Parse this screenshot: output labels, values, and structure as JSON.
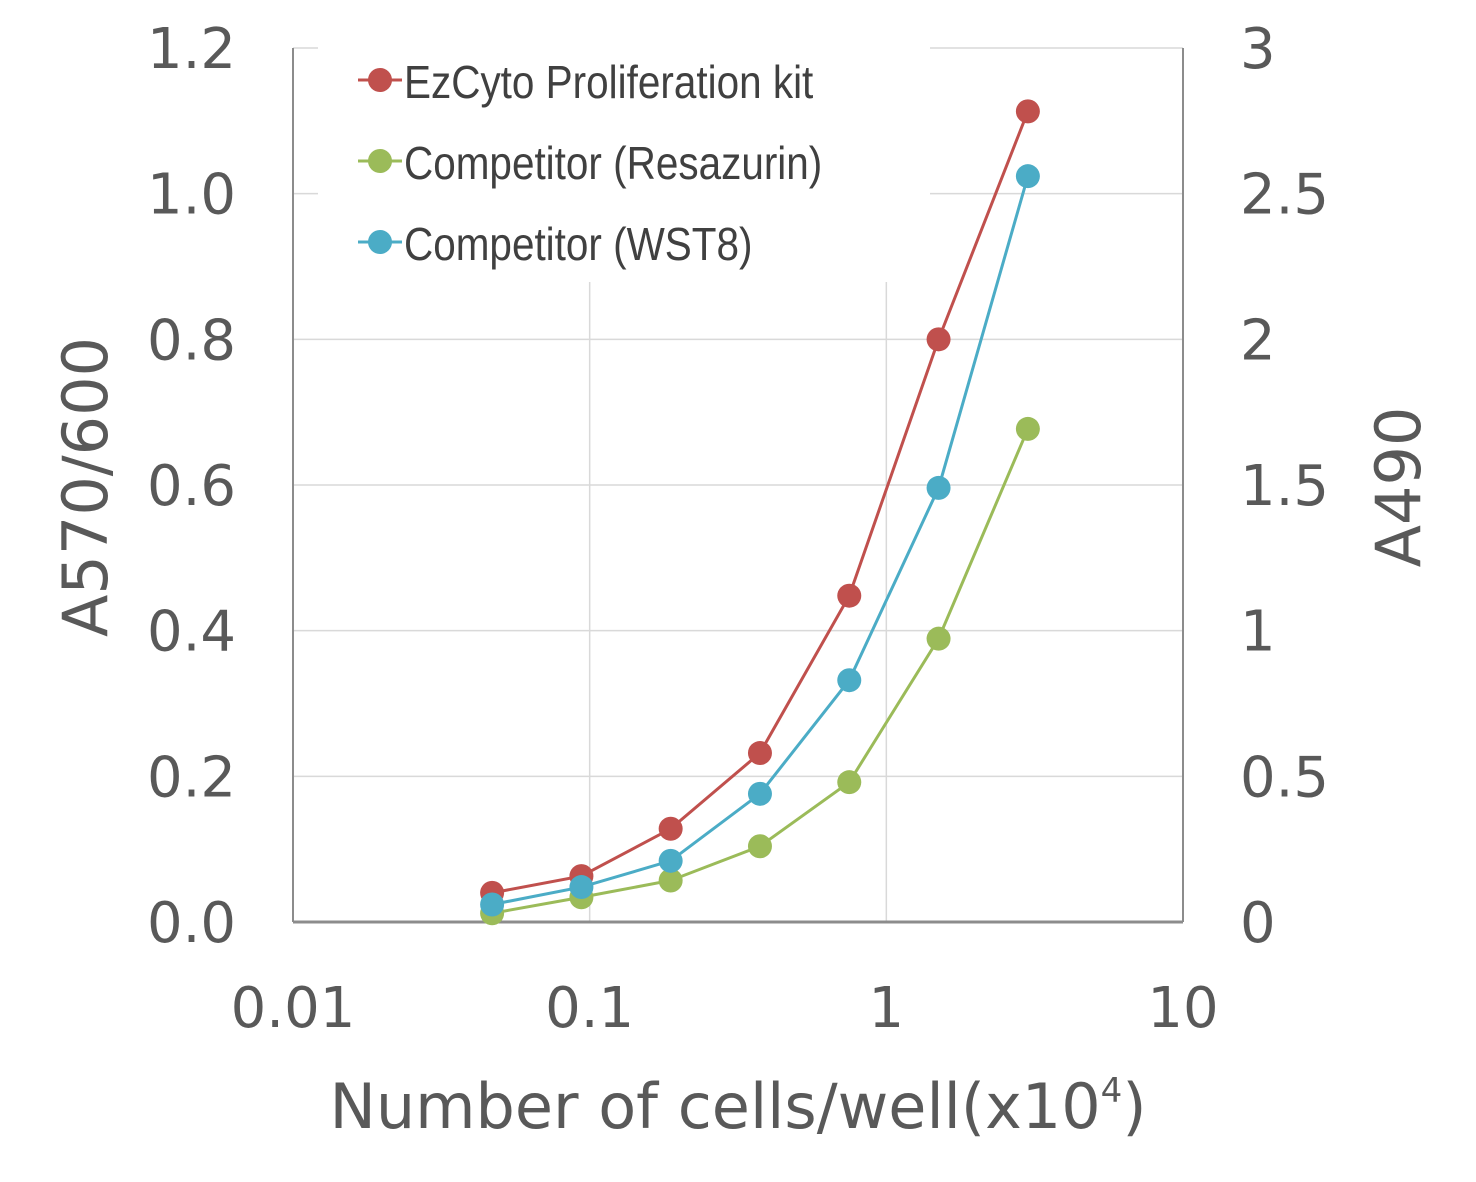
{
  "chart_data": {
    "type": "line",
    "title": "",
    "xlabel": "Number of cells/well(x10",
    "xlabel_sup": "4",
    "xlabel_close": ")",
    "ylabel": "A570/600",
    "y2label": "A490",
    "xscale": "log",
    "xlim": [
      0.01,
      10
    ],
    "xticks": [
      0.01,
      0.1,
      1,
      10
    ],
    "xtick_labels": [
      "0.01",
      "0.1",
      "1",
      "10"
    ],
    "ylim": [
      0,
      1.2
    ],
    "yticks": [
      0.0,
      0.2,
      0.4,
      0.6,
      0.8,
      1.0,
      1.2
    ],
    "ytick_labels": [
      "0.0",
      "0.2",
      "0.4",
      "0.6",
      "0.8",
      "1.0",
      "1.2"
    ],
    "y2lim": [
      0,
      3
    ],
    "y2ticks": [
      0,
      0.5,
      1,
      1.5,
      2,
      2.5,
      3
    ],
    "y2tick_labels": [
      "0",
      "0.5",
      "1",
      "1.5",
      "2",
      "2.5",
      "3"
    ],
    "grid": true,
    "legend_position": "top-left",
    "x": [
      0.0469,
      0.0938,
      0.1875,
      0.375,
      0.75,
      1.5,
      3.0
    ],
    "series": [
      {
        "name": "EzCyto Proliferation kit",
        "axis": "left",
        "color": "#c0504d",
        "values": [
          0.04,
          0.063,
          0.128,
          0.232,
          0.448,
          0.8,
          1.113
        ]
      },
      {
        "name": "Competitor (Resazurin)",
        "axis": "left",
        "color": "#9bbb59",
        "values": [
          0.012,
          0.034,
          0.057,
          0.104,
          0.192,
          0.389,
          0.677
        ]
      },
      {
        "name": "Competitor (WST8)",
        "axis": "right",
        "color": "#4bacc6",
        "values": [
          0.06,
          0.12,
          0.21,
          0.44,
          0.83,
          1.49,
          2.56
        ]
      }
    ]
  }
}
